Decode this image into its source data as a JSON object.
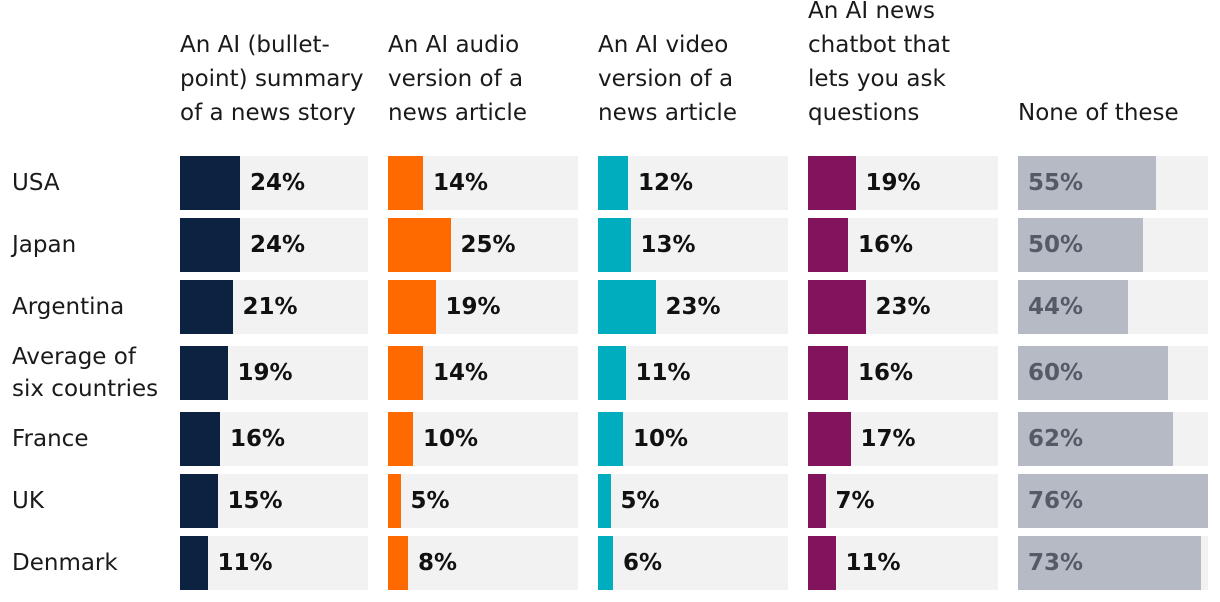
{
  "chart_data": {
    "type": "bar",
    "title": "",
    "columns": [
      {
        "label": "An AI (bullet-point) summary of a news story",
        "lines": [
          "An AI (bullet-",
          "point) summary",
          "of a news story"
        ],
        "color": "#0c2240"
      },
      {
        "label": "An AI audio version of a news article",
        "lines": [
          "An AI audio",
          "version of a",
          "news article"
        ],
        "color": "#ff6a00"
      },
      {
        "label": "An AI video version of a news article",
        "lines": [
          "An AI video",
          "version of a",
          "news article"
        ],
        "color": "#00adbf"
      },
      {
        "label": "An AI news chatbot that lets you ask questions",
        "lines": [
          "An AI news",
          "chatbot that",
          "lets you ask",
          "questions"
        ],
        "color": "#82145e"
      },
      {
        "label": "None of these",
        "lines": [
          "None of these"
        ],
        "color": "#b5bac4"
      }
    ],
    "categories": [
      "USA",
      "Japan",
      "Argentina",
      "Average of six countries",
      "France",
      "UK",
      "Denmark"
    ],
    "category_lines": [
      [
        "USA"
      ],
      [
        "Japan"
      ],
      [
        "Argentina"
      ],
      [
        "Average of",
        "six countries"
      ],
      [
        "France"
      ],
      [
        "UK"
      ],
      [
        "Denmark"
      ]
    ],
    "series": [
      {
        "name": "An AI (bullet-point) summary of a news story",
        "values": [
          24,
          24,
          21,
          19,
          16,
          15,
          11
        ]
      },
      {
        "name": "An AI audio version of a news article",
        "values": [
          14,
          25,
          19,
          14,
          10,
          5,
          8
        ]
      },
      {
        "name": "An AI video version of a news article",
        "values": [
          12,
          13,
          23,
          11,
          10,
          5,
          6
        ]
      },
      {
        "name": "An AI news chatbot that lets you ask questions",
        "values": [
          19,
          16,
          23,
          16,
          17,
          7,
          11
        ]
      },
      {
        "name": "None of these",
        "values": [
          55,
          50,
          44,
          60,
          62,
          76,
          73
        ]
      }
    ],
    "value_suffix": "%",
    "track_color": "#f2f2f2"
  }
}
